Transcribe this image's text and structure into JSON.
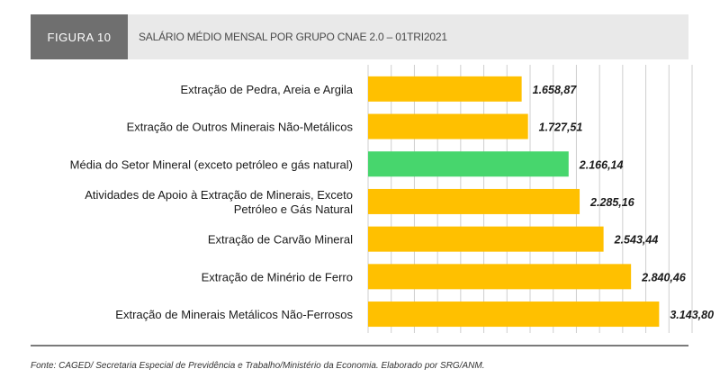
{
  "figure": {
    "tag": "FIGURA 10",
    "title": "SALÁRIO MÉDIO MENSAL POR GRUPO CNAE 2.0 – 01TRI2021"
  },
  "source": "Fonte: CAGED/ Secretaria Especial de Previdência e Trabalho/Ministério da Economia. Elaborado por SRG/ANM.",
  "colors": {
    "bar": "#FFC000",
    "highlight": "#47D66D",
    "grid": "#cfcfcf"
  },
  "chart_data": {
    "type": "bar",
    "orientation": "horizontal",
    "categories": [
      [
        "Extração de Pedra, Areia e Argila"
      ],
      [
        "Extração de Outros Minerais Não-Metálicos"
      ],
      [
        "Média do Setor Mineral (exceto petróleo e gás natural)"
      ],
      [
        "Atividades de Apoio à Extração de Minerais, Exceto",
        "Petróleo e Gás Natural"
      ],
      [
        "Extração de Carvão Mineral"
      ],
      [
        "Extração de Minério de Ferro"
      ],
      [
        "Extração de Minerais Metálicos Não-Ferrosos"
      ]
    ],
    "values": [
      1658.87,
      1727.51,
      2166.14,
      2285.16,
      2543.44,
      2840.46,
      3143.8
    ],
    "value_labels": [
      "1.658,87",
      "1.727,51",
      "2.166,14",
      "2.285,16",
      "2.543,44",
      "2.840,46",
      "3.143,80"
    ],
    "highlight_index": 2,
    "xlim": [
      0,
      3500
    ],
    "grid": true
  }
}
